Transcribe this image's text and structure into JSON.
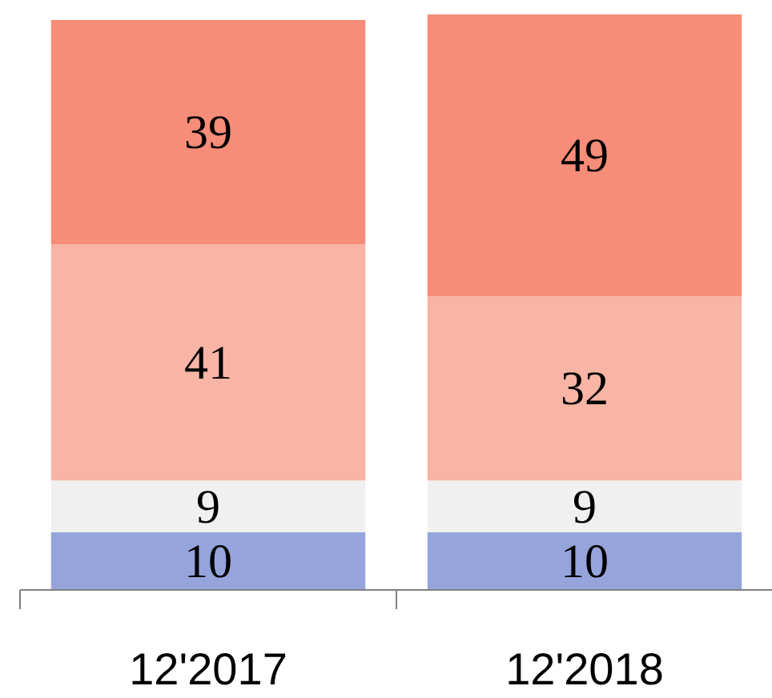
{
  "chart_data": {
    "type": "bar",
    "stacked": true,
    "data_labels": true,
    "categories": [
      "12'2017",
      "12'2018"
    ],
    "series": [
      {
        "color": "#96a4dc",
        "values": [
          10,
          10
        ]
      },
      {
        "color": "#f0f0f0",
        "values": [
          9,
          9
        ]
      },
      {
        "color": "#f8b4a5",
        "values": [
          41,
          32
        ]
      },
      {
        "color": "#f78c78",
        "values": [
          39,
          49
        ]
      }
    ]
  }
}
